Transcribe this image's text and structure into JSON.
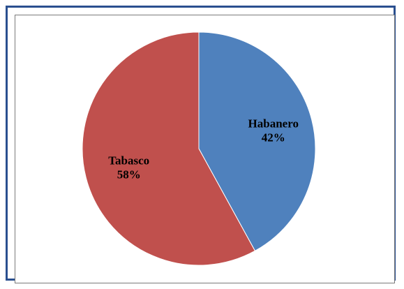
{
  "chart_data": {
    "type": "pie",
    "title": "",
    "categories": [
      "Habanero",
      "Tabasco"
    ],
    "values": [
      42,
      58
    ],
    "percent_labels": [
      "42%",
      "58%"
    ],
    "colors": [
      "#4f81bd",
      "#c0504d"
    ],
    "start_angle_deg": 0,
    "direction": "clockwise",
    "legend": "none",
    "data_labels": "inside"
  }
}
